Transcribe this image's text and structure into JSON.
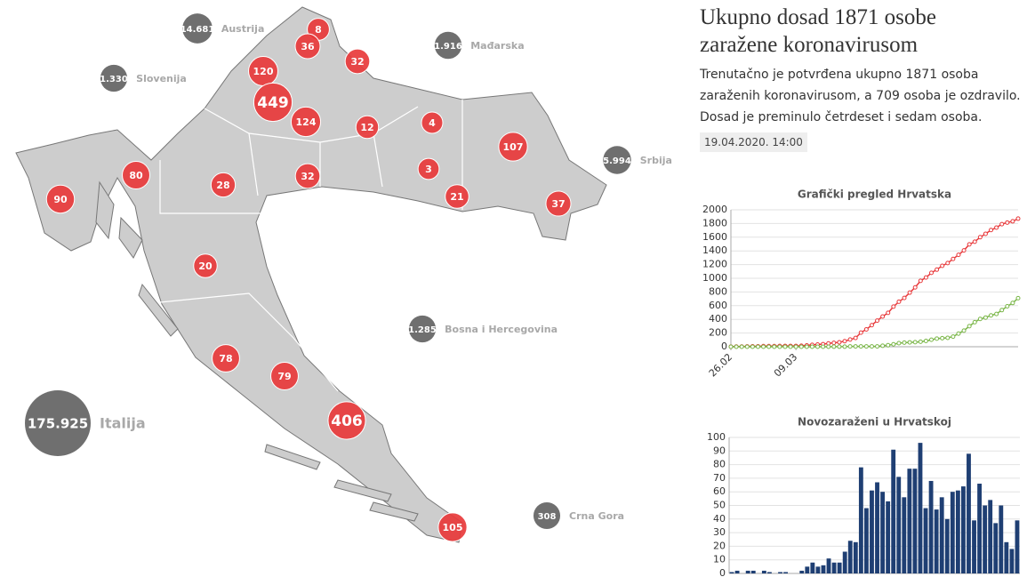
{
  "map": {
    "counties": [
      8,
      36,
      32,
      120,
      449,
      124,
      12,
      4,
      107,
      3,
      21,
      37,
      90,
      80,
      28,
      32,
      20,
      78,
      79,
      406,
      105
    ],
    "countries": [
      {
        "name": "Austrija",
        "value": 14681,
        "label": "14.681"
      },
      {
        "name": "Mađarska",
        "value": 1916,
        "label": "1.916"
      },
      {
        "name": "Slovenija",
        "value": 1330,
        "label": "1.330"
      },
      {
        "name": "Srbija",
        "value": 5994,
        "label": "5.994"
      },
      {
        "name": "Bosna i Hercegovina",
        "value": 1285,
        "label": "1.285"
      },
      {
        "name": "Italija",
        "value": 175925,
        "label": "175.925"
      },
      {
        "name": "Crna Gora",
        "value": 308,
        "label": "308"
      }
    ]
  },
  "article": {
    "title": "Ukupno dosad 1871 osobe zaražene koronavirusom",
    "text": "Trenutačno je potvrđena ukupno 1871 osoba zaraženih koronavirusom, a 709 osoba je ozdravilo. Dosad je preminulo četrdeset i sedam osoba.",
    "date": "19.04.2020. 14:00"
  },
  "chart_data": [
    {
      "type": "line",
      "title": "Grafički pregled Hrvatska",
      "categories": [
        "26.02",
        null,
        null,
        null,
        null,
        null,
        null,
        null,
        null,
        null,
        null,
        null,
        "09.03",
        null,
        null,
        null,
        null,
        null,
        null,
        null,
        null,
        null,
        null,
        null,
        null,
        null,
        null,
        null,
        null,
        null,
        null,
        null,
        null,
        null,
        null,
        null,
        null,
        null,
        null,
        null,
        null,
        null,
        null,
        null,
        null,
        null,
        null,
        null,
        null,
        null,
        null,
        null,
        null,
        null
      ],
      "series": [
        {
          "color": "#e8393b",
          "values": [
            1,
            3,
            3,
            5,
            7,
            7,
            9,
            10,
            10,
            11,
            12,
            12,
            12,
            14,
            19,
            27,
            32,
            38,
            49,
            57,
            65,
            81,
            105,
            128,
            206,
            254,
            315,
            382,
            442,
            495,
            586,
            657,
            713,
            790,
            867,
            963,
            1011,
            1079,
            1126,
            1182,
            1222,
            1282,
            1343,
            1407,
            1495,
            1534,
            1600,
            1650,
            1704,
            1741,
            1791,
            1814,
            1832,
            1871
          ]
        },
        {
          "color": "#7ab648",
          "values": [
            0,
            0,
            0,
            0,
            0,
            0,
            0,
            0,
            0,
            0,
            0,
            0,
            0,
            0,
            0,
            0,
            0,
            0,
            0,
            1,
            1,
            1,
            5,
            5,
            5,
            5,
            5,
            5,
            14,
            22,
            36,
            52,
            60,
            64,
            67,
            73,
            84,
            102,
            118,
            125,
            130,
            148,
            192,
            235,
            300,
            359,
            406,
            426,
            458,
            479,
            535,
            591,
            639,
            709
          ]
        }
      ],
      "ylim": [
        0,
        2000
      ],
      "yticks": [
        0,
        200,
        400,
        600,
        800,
        1000,
        1200,
        1400,
        1600,
        1800,
        2000
      ],
      "grid": true
    },
    {
      "type": "bar",
      "title": "Novozaraženi u Hrvatskoj",
      "values": [
        1,
        2,
        0,
        2,
        2,
        0,
        2,
        1,
        0,
        1,
        1,
        0,
        0,
        2,
        5,
        8,
        5,
        6,
        11,
        8,
        8,
        16,
        24,
        23,
        78,
        48,
        61,
        67,
        60,
        53,
        91,
        71,
        56,
        77,
        77,
        96,
        48,
        68,
        47,
        56,
        40,
        60,
        61,
        64,
        88,
        39,
        66,
        50,
        54,
        37,
        50,
        23,
        18,
        39
      ],
      "color": "#1f3f73",
      "ylim": [
        0,
        100
      ],
      "yticks": [
        0,
        10,
        20,
        30,
        40,
        50,
        60,
        70,
        80,
        90,
        100
      ],
      "grid": true
    }
  ]
}
